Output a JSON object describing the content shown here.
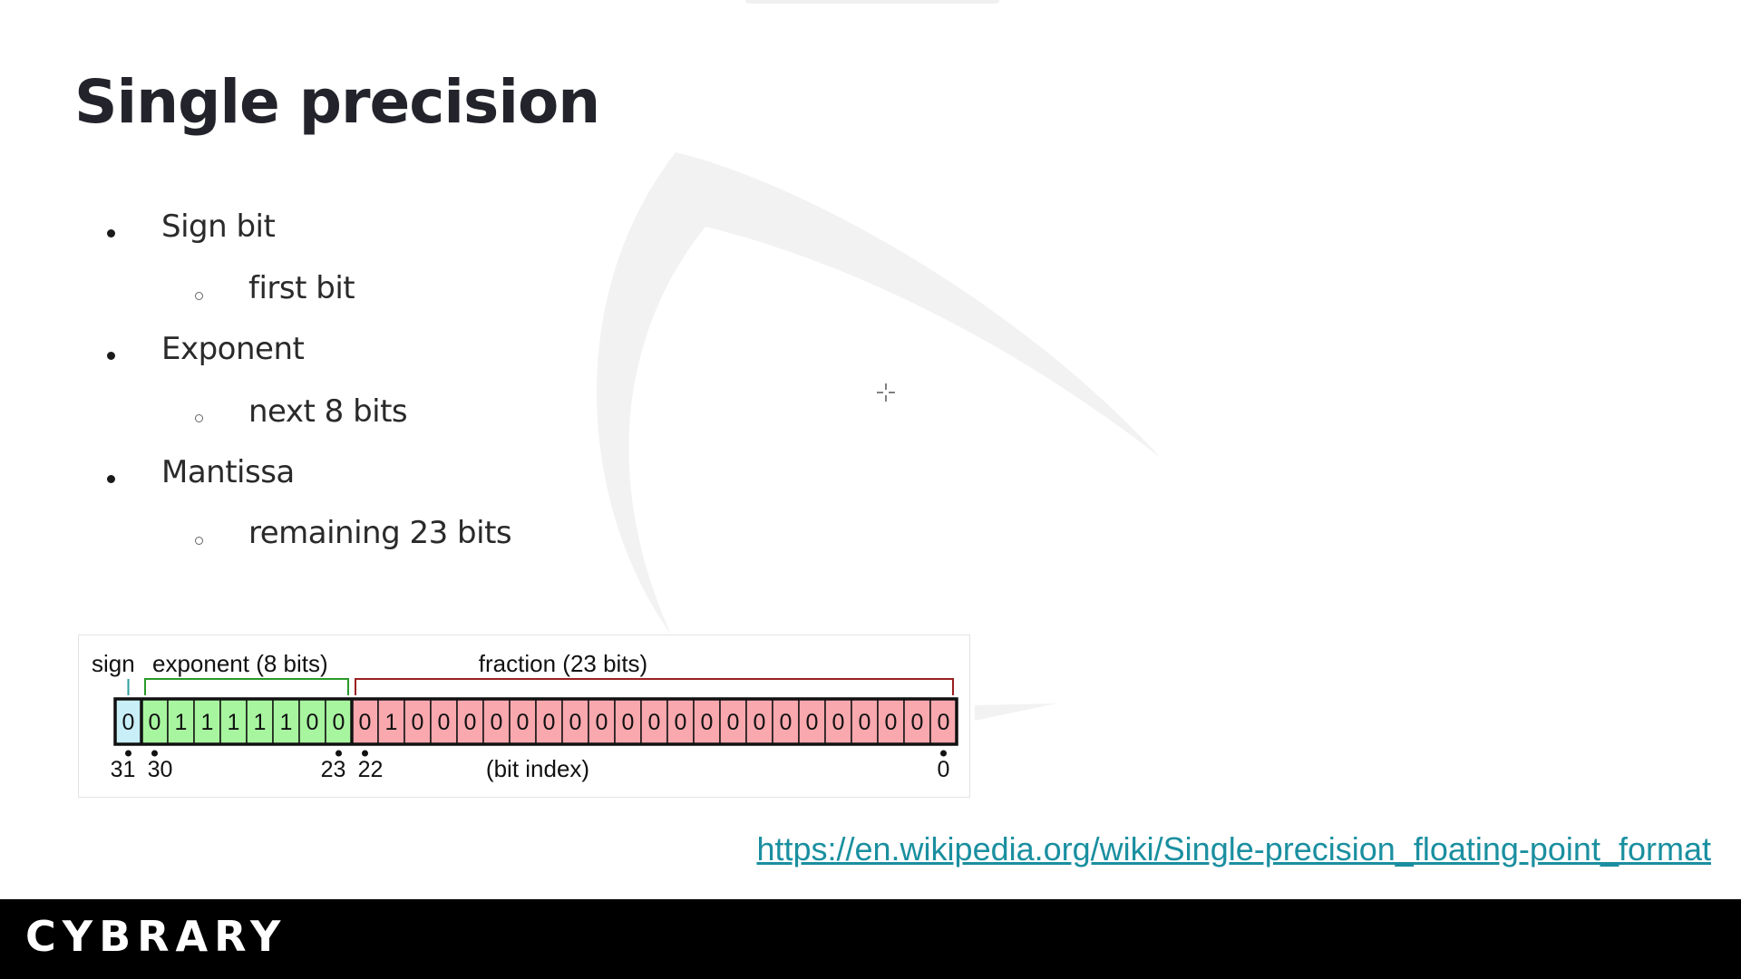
{
  "slide": {
    "title": "Single precision",
    "bullets": [
      {
        "text": "Sign bit",
        "sub": "first bit"
      },
      {
        "text": "Exponent",
        "sub": "next 8 bits"
      },
      {
        "text": "Mantissa",
        "sub": "remaining 23 bits"
      }
    ],
    "link": "https://en.wikipedia.org/wiki/Single-precision_floating-point_format"
  },
  "diagram": {
    "labels": {
      "sign": "sign",
      "exponent": "exponent (8 bits)",
      "fraction": "fraction (23 bits)",
      "bit_index": "(bit index)"
    },
    "bits": [
      0,
      0,
      1,
      1,
      1,
      1,
      1,
      0,
      0,
      0,
      1,
      0,
      0,
      0,
      0,
      0,
      0,
      0,
      0,
      0,
      0,
      0,
      0,
      0,
      0,
      0,
      0,
      0,
      0,
      0,
      0,
      0
    ],
    "index_labels": [
      "31",
      "30",
      "23",
      "22",
      "0"
    ],
    "colors": {
      "sign": "#c8eef8",
      "exponent": "#a8f5a0",
      "fraction": "#f9a8ae",
      "sign_bracket": "#2e9e9e",
      "exponent_bracket": "#2a9a2a",
      "fraction_bracket": "#9a2020"
    }
  },
  "footer": {
    "logo": "CYBRARY"
  }
}
